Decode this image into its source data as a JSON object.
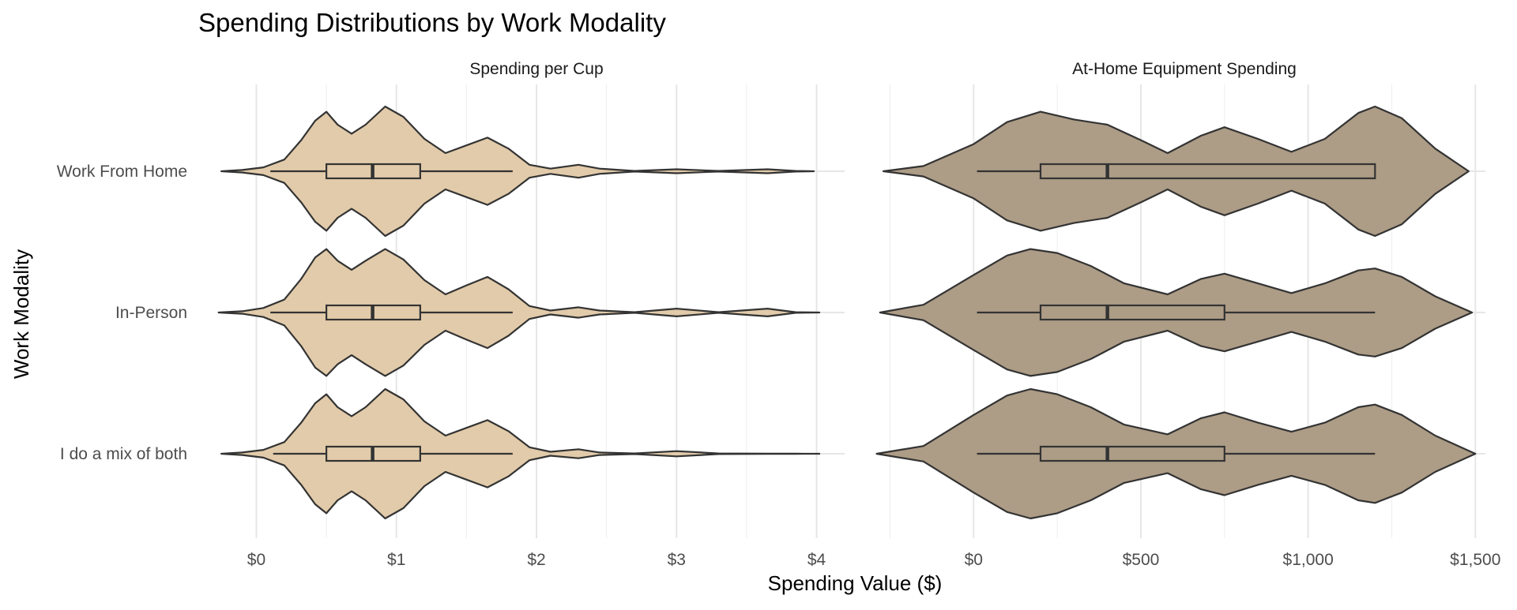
{
  "chart_data": {
    "type": "violin",
    "title": "Spending Distributions by Work Modality",
    "xlabel": "Spending Value ($)",
    "ylabel": "Work Modality",
    "categories": [
      "Work From Home",
      "In-Person",
      "I do a mix of both"
    ],
    "grid": true,
    "legend": "none",
    "panels": [
      {
        "title": "Spending per Cup",
        "fill": "#E2CBAA",
        "xlim": [
          -0.2,
          4.2
        ],
        "ticks": [
          0,
          1,
          2,
          3,
          4
        ],
        "tick_labels": [
          "$0",
          "$1",
          "$2",
          "$3",
          "$4"
        ],
        "series": [
          {
            "name": "Work From Home",
            "density": [
              [
                -0.25,
                0
              ],
              [
                -0.1,
                0.02
              ],
              [
                0.05,
                0.06
              ],
              [
                0.2,
                0.18
              ],
              [
                0.32,
                0.48
              ],
              [
                0.42,
                0.78
              ],
              [
                0.5,
                0.92
              ],
              [
                0.58,
                0.72
              ],
              [
                0.68,
                0.58
              ],
              [
                0.78,
                0.72
              ],
              [
                0.92,
                1.0
              ],
              [
                1.05,
                0.84
              ],
              [
                1.2,
                0.5
              ],
              [
                1.35,
                0.28
              ],
              [
                1.5,
                0.4
              ],
              [
                1.65,
                0.52
              ],
              [
                1.8,
                0.35
              ],
              [
                1.95,
                0.1
              ],
              [
                2.1,
                0.04
              ],
              [
                2.3,
                0.1
              ],
              [
                2.45,
                0.04
              ],
              [
                2.7,
                0.005
              ],
              [
                3.0,
                0.03
              ],
              [
                3.3,
                0.005
              ],
              [
                3.65,
                0.03
              ],
              [
                3.85,
                0.005
              ],
              [
                3.98,
                0
              ]
            ],
            "box": {
              "whisker_low": 0.1,
              "q1": 0.5,
              "median": 0.83,
              "q3": 1.17,
              "whisker_high": 1.83
            }
          },
          {
            "name": "In-Person",
            "density": [
              [
                -0.27,
                0
              ],
              [
                -0.1,
                0.02
              ],
              [
                0.05,
                0.07
              ],
              [
                0.2,
                0.2
              ],
              [
                0.32,
                0.52
              ],
              [
                0.42,
                0.85
              ],
              [
                0.5,
                0.98
              ],
              [
                0.58,
                0.8
              ],
              [
                0.68,
                0.66
              ],
              [
                0.78,
                0.8
              ],
              [
                0.92,
                0.98
              ],
              [
                1.05,
                0.82
              ],
              [
                1.2,
                0.5
              ],
              [
                1.35,
                0.28
              ],
              [
                1.5,
                0.42
              ],
              [
                1.65,
                0.55
              ],
              [
                1.8,
                0.36
              ],
              [
                1.95,
                0.1
              ],
              [
                2.1,
                0.03
              ],
              [
                2.3,
                0.08
              ],
              [
                2.45,
                0.03
              ],
              [
                2.7,
                0.005
              ],
              [
                3.0,
                0.06
              ],
              [
                3.3,
                0.005
              ],
              [
                3.65,
                0.06
              ],
              [
                3.85,
                0.005
              ],
              [
                4.02,
                0
              ]
            ],
            "box": {
              "whisker_low": 0.1,
              "q1": 0.5,
              "median": 0.83,
              "q3": 1.17,
              "whisker_high": 1.83
            }
          },
          {
            "name": "I do a mix of both",
            "density": [
              [
                -0.25,
                0
              ],
              [
                -0.1,
                0.02
              ],
              [
                0.05,
                0.06
              ],
              [
                0.2,
                0.18
              ],
              [
                0.32,
                0.48
              ],
              [
                0.42,
                0.78
              ],
              [
                0.5,
                0.92
              ],
              [
                0.58,
                0.72
              ],
              [
                0.68,
                0.58
              ],
              [
                0.78,
                0.72
              ],
              [
                0.92,
                1.0
              ],
              [
                1.05,
                0.84
              ],
              [
                1.2,
                0.5
              ],
              [
                1.35,
                0.28
              ],
              [
                1.5,
                0.4
              ],
              [
                1.65,
                0.52
              ],
              [
                1.8,
                0.35
              ],
              [
                1.95,
                0.1
              ],
              [
                2.1,
                0.03
              ],
              [
                2.3,
                0.07
              ],
              [
                2.45,
                0.02
              ],
              [
                2.7,
                0.005
              ],
              [
                3.0,
                0.04
              ],
              [
                3.3,
                0.005
              ],
              [
                3.65,
                0.003
              ],
              [
                3.85,
                0.001
              ],
              [
                4.02,
                0
              ]
            ],
            "box": {
              "whisker_low": 0.12,
              "q1": 0.5,
              "median": 0.83,
              "q3": 1.17,
              "whisker_high": 1.83
            }
          }
        ]
      },
      {
        "title": "At-Home Equipment Spending",
        "fill": "#AD9C86",
        "xlim": [
          -270,
          1530
        ],
        "ticks": [
          0,
          500,
          1000,
          1500
        ],
        "tick_labels": [
          "$0",
          "$500",
          "$1,000",
          "$1,500"
        ],
        "series": [
          {
            "name": "Work From Home",
            "density": [
              [
                -270,
                0
              ],
              [
                -150,
                0.08
              ],
              [
                0,
                0.42
              ],
              [
                100,
                0.76
              ],
              [
                200,
                0.92
              ],
              [
                300,
                0.8
              ],
              [
                400,
                0.72
              ],
              [
                500,
                0.48
              ],
              [
                580,
                0.28
              ],
              [
                680,
                0.55
              ],
              [
                750,
                0.68
              ],
              [
                850,
                0.5
              ],
              [
                950,
                0.3
              ],
              [
                1050,
                0.5
              ],
              [
                1150,
                0.9
              ],
              [
                1200,
                1.0
              ],
              [
                1280,
                0.82
              ],
              [
                1380,
                0.35
              ],
              [
                1480,
                0
              ]
            ],
            "box": {
              "whisker_low": 10,
              "q1": 200,
              "median": 400,
              "q3": 1200,
              "whisker_high": 1200
            }
          },
          {
            "name": "In-Person",
            "density": [
              [
                -280,
                0
              ],
              [
                -150,
                0.12
              ],
              [
                0,
                0.58
              ],
              [
                100,
                0.88
              ],
              [
                170,
                0.98
              ],
              [
                250,
                0.92
              ],
              [
                350,
                0.72
              ],
              [
                450,
                0.45
              ],
              [
                580,
                0.28
              ],
              [
                680,
                0.52
              ],
              [
                750,
                0.6
              ],
              [
                850,
                0.45
              ],
              [
                950,
                0.3
              ],
              [
                1050,
                0.45
              ],
              [
                1150,
                0.65
              ],
              [
                1200,
                0.68
              ],
              [
                1280,
                0.55
              ],
              [
                1380,
                0.25
              ],
              [
                1490,
                0
              ]
            ],
            "box": {
              "whisker_low": 10,
              "q1": 200,
              "median": 400,
              "q3": 750,
              "whisker_high": 1200
            }
          },
          {
            "name": "I do a mix of both",
            "density": [
              [
                -290,
                0
              ],
              [
                -150,
                0.12
              ],
              [
                0,
                0.6
              ],
              [
                100,
                0.9
              ],
              [
                170,
                1.0
              ],
              [
                250,
                0.92
              ],
              [
                350,
                0.72
              ],
              [
                450,
                0.45
              ],
              [
                580,
                0.3
              ],
              [
                680,
                0.55
              ],
              [
                750,
                0.64
              ],
              [
                850,
                0.48
              ],
              [
                950,
                0.34
              ],
              [
                1050,
                0.48
              ],
              [
                1150,
                0.72
              ],
              [
                1200,
                0.76
              ],
              [
                1280,
                0.6
              ],
              [
                1380,
                0.28
              ],
              [
                1500,
                0
              ]
            ],
            "box": {
              "whisker_low": 10,
              "q1": 200,
              "median": 400,
              "q3": 750,
              "whisker_high": 1200
            }
          }
        ]
      }
    ]
  }
}
